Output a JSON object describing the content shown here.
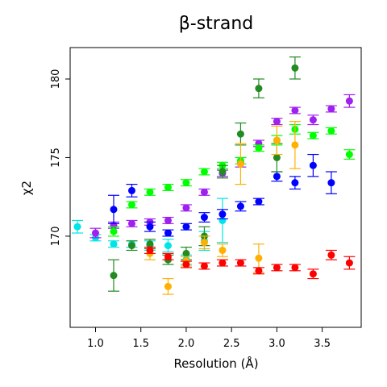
{
  "chart_data": {
    "type": "scatter",
    "title": "β-strand",
    "xlabel": "Resolution (Å)",
    "ylabel": "χ2",
    "xlim": [
      0.72,
      3.93
    ],
    "ylim": [
      164.2,
      182.0
    ],
    "xticks": [
      1.0,
      1.5,
      2.0,
      2.5,
      3.0,
      3.5
    ],
    "yticks": [
      170,
      175,
      180
    ],
    "xtick_labels": [
      "1.0",
      "1.5",
      "2.0",
      "2.5",
      "3.0",
      "3.5"
    ],
    "ytick_labels": [
      "170",
      "175",
      "180"
    ],
    "grid": false,
    "error_bars": true,
    "series": [
      {
        "color": "#00e5e5",
        "points": [
          {
            "x": 0.8,
            "y": 170.6,
            "err": 0.4
          },
          {
            "x": 1.0,
            "y": 169.9,
            "err": 0.2
          },
          {
            "x": 1.2,
            "y": 169.5,
            "err": 0.2
          },
          {
            "x": 1.4,
            "y": 169.5,
            "err": 0.2
          },
          {
            "x": 1.6,
            "y": 169.4,
            "err": 0.3
          },
          {
            "x": 1.8,
            "y": 169.4,
            "err": 0.4
          },
          {
            "x": 2.0,
            "y": 168.5,
            "err": 0.3
          },
          {
            "x": 2.2,
            "y": 169.7,
            "err": 0.6
          },
          {
            "x": 2.4,
            "y": 171.0,
            "err": 1.4
          }
        ]
      },
      {
        "color": "#a020f0",
        "points": [
          {
            "x": 1.0,
            "y": 170.2,
            "err": 0.3
          },
          {
            "x": 1.2,
            "y": 170.7,
            "err": 0.2
          },
          {
            "x": 1.4,
            "y": 170.8,
            "err": 0.2
          },
          {
            "x": 1.6,
            "y": 170.9,
            "err": 0.2
          },
          {
            "x": 1.8,
            "y": 171.0,
            "err": 0.2
          },
          {
            "x": 2.0,
            "y": 171.8,
            "err": 0.2
          },
          {
            "x": 2.2,
            "y": 172.8,
            "err": 0.2
          },
          {
            "x": 2.4,
            "y": 174.0,
            "err": 0.2
          },
          {
            "x": 2.6,
            "y": 174.7,
            "err": 0.3
          },
          {
            "x": 2.8,
            "y": 175.9,
            "err": 0.2
          },
          {
            "x": 3.0,
            "y": 177.3,
            "err": 0.2
          },
          {
            "x": 3.2,
            "y": 178.0,
            "err": 0.2
          },
          {
            "x": 3.4,
            "y": 177.4,
            "err": 0.3
          },
          {
            "x": 3.6,
            "y": 178.1,
            "err": 0.2
          },
          {
            "x": 3.8,
            "y": 178.6,
            "err": 0.4
          }
        ]
      },
      {
        "color": "#00ff00",
        "points": [
          {
            "x": 1.2,
            "y": 170.3,
            "err": 0.3
          },
          {
            "x": 1.4,
            "y": 172.0,
            "err": 0.2
          },
          {
            "x": 1.6,
            "y": 172.8,
            "err": 0.2
          },
          {
            "x": 1.8,
            "y": 173.1,
            "err": 0.2
          },
          {
            "x": 2.0,
            "y": 173.4,
            "err": 0.2
          },
          {
            "x": 2.2,
            "y": 174.1,
            "err": 0.2
          },
          {
            "x": 2.4,
            "y": 174.5,
            "err": 0.2
          },
          {
            "x": 2.6,
            "y": 174.8,
            "err": 0.2
          },
          {
            "x": 2.8,
            "y": 175.6,
            "err": 0.2
          },
          {
            "x": 3.0,
            "y": 176.1,
            "err": 0.3
          },
          {
            "x": 3.2,
            "y": 176.8,
            "err": 0.3
          },
          {
            "x": 3.4,
            "y": 176.4,
            "err": 0.2
          },
          {
            "x": 3.6,
            "y": 176.7,
            "err": 0.2
          },
          {
            "x": 3.8,
            "y": 175.2,
            "err": 0.3
          }
        ]
      },
      {
        "color": "#0000ff",
        "points": [
          {
            "x": 1.2,
            "y": 171.7,
            "err": 0.9
          },
          {
            "x": 1.4,
            "y": 172.9,
            "err": 0.4
          },
          {
            "x": 1.6,
            "y": 170.6,
            "err": 0.3
          },
          {
            "x": 1.8,
            "y": 170.2,
            "err": 0.2
          },
          {
            "x": 2.0,
            "y": 170.6,
            "err": 0.2
          },
          {
            "x": 2.2,
            "y": 171.2,
            "err": 0.3
          },
          {
            "x": 2.4,
            "y": 171.4,
            "err": 0.3
          },
          {
            "x": 2.6,
            "y": 171.9,
            "err": 0.3
          },
          {
            "x": 2.8,
            "y": 172.2,
            "err": 0.2
          },
          {
            "x": 3.0,
            "y": 173.8,
            "err": 0.3
          },
          {
            "x": 3.2,
            "y": 173.4,
            "err": 0.4
          },
          {
            "x": 3.4,
            "y": 174.5,
            "err": 0.7
          },
          {
            "x": 3.6,
            "y": 173.4,
            "err": 0.7
          }
        ]
      },
      {
        "color": "#228b22",
        "points": [
          {
            "x": 1.2,
            "y": 167.5,
            "err": 1.0
          },
          {
            "x": 1.4,
            "y": 169.4,
            "err": 0.3
          },
          {
            "x": 1.6,
            "y": 169.5,
            "err": 0.3
          },
          {
            "x": 1.8,
            "y": 168.5,
            "err": 0.3
          },
          {
            "x": 2.0,
            "y": 168.9,
            "err": 0.4
          },
          {
            "x": 2.2,
            "y": 170.0,
            "err": 0.6
          },
          {
            "x": 2.4,
            "y": 174.1,
            "err": 0.4
          },
          {
            "x": 2.6,
            "y": 176.5,
            "err": 0.7
          },
          {
            "x": 2.8,
            "y": 179.4,
            "err": 0.6
          },
          {
            "x": 3.0,
            "y": 175.0,
            "err": 0.9
          },
          {
            "x": 3.2,
            "y": 180.7,
            "err": 0.7
          }
        ]
      },
      {
        "color": "#ffb000",
        "points": [
          {
            "x": 1.6,
            "y": 168.9,
            "err": 0.4
          },
          {
            "x": 1.8,
            "y": 166.8,
            "err": 0.5
          },
          {
            "x": 2.0,
            "y": 168.4,
            "err": 0.3
          },
          {
            "x": 2.2,
            "y": 169.6,
            "err": 0.4
          },
          {
            "x": 2.4,
            "y": 169.1,
            "err": 0.4
          },
          {
            "x": 2.6,
            "y": 174.6,
            "err": 1.3
          },
          {
            "x": 2.8,
            "y": 168.6,
            "err": 0.9
          },
          {
            "x": 3.0,
            "y": 176.1,
            "err": 0.9
          },
          {
            "x": 3.2,
            "y": 175.8,
            "err": 1.5
          }
        ]
      },
      {
        "color": "#ff0000",
        "points": [
          {
            "x": 1.6,
            "y": 169.1,
            "err": 0.2
          },
          {
            "x": 1.8,
            "y": 168.7,
            "err": 0.2
          },
          {
            "x": 2.0,
            "y": 168.2,
            "err": 0.2
          },
          {
            "x": 2.2,
            "y": 168.1,
            "err": 0.2
          },
          {
            "x": 2.4,
            "y": 168.3,
            "err": 0.2
          },
          {
            "x": 2.6,
            "y": 168.3,
            "err": 0.2
          },
          {
            "x": 2.8,
            "y": 167.8,
            "err": 0.2
          },
          {
            "x": 3.0,
            "y": 168.0,
            "err": 0.2
          },
          {
            "x": 3.2,
            "y": 168.0,
            "err": 0.2
          },
          {
            "x": 3.4,
            "y": 167.6,
            "err": 0.3
          },
          {
            "x": 3.6,
            "y": 168.8,
            "err": 0.3
          },
          {
            "x": 3.8,
            "y": 168.3,
            "err": 0.4
          }
        ]
      }
    ]
  }
}
